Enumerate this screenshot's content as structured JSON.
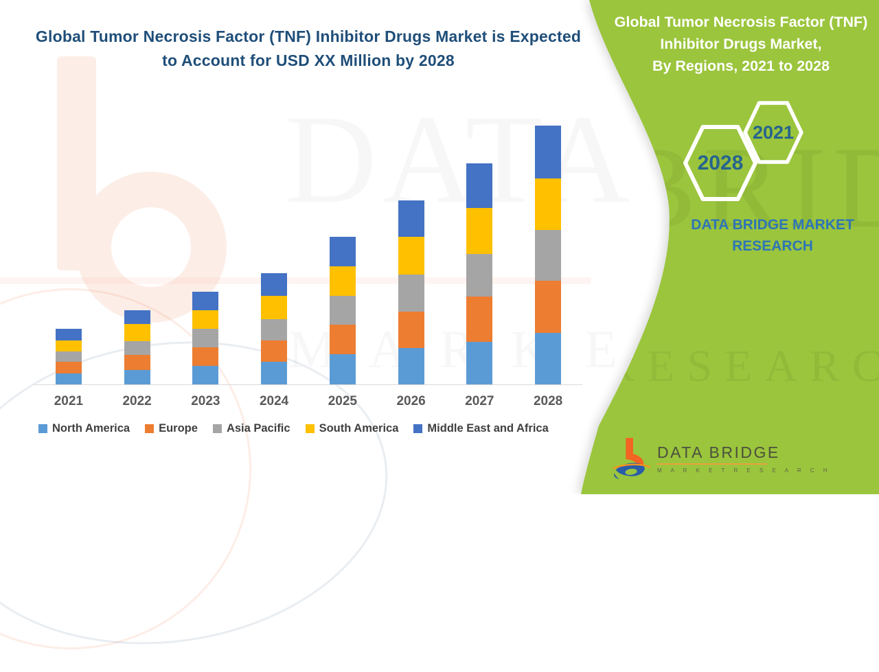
{
  "main_title": {
    "line1": "Global Tumor Necrosis Factor (TNF) Inhibitor Drugs Market is Expected",
    "line2": "to Account for USD XX Million by 2028",
    "color": "#1F4E79"
  },
  "side_panel": {
    "background": "#9BC53E",
    "title_lines": [
      "Global Tumor Necrosis Factor (TNF)",
      "Inhibitor Drugs Market,",
      "By Regions, 2021 to 2028"
    ],
    "hexagons": [
      {
        "label": "2021"
      },
      {
        "label": "2028"
      }
    ],
    "brand_caption": {
      "line1": "DATA BRIDGE MARKET",
      "line2": "RESEARCH",
      "color": "#2E75B6"
    },
    "logo": {
      "title": "DATA BRIDGE",
      "subtitle": "M A R K E T   R E S E A R C H"
    }
  },
  "watermarks": {
    "big_text": "DATA B",
    "row_text": "M A R K E T  R E S E",
    "panel_text_1": "BRIDGE",
    "panel_text_2": "RESEARCH"
  },
  "chart_data": {
    "type": "bar",
    "stacked": true,
    "title": "Global Tumor Necrosis Factor (TNF) Inhibitor Drugs Market is Expected to Account for USD XX Million by 2028",
    "categories": [
      "2021",
      "2022",
      "2023",
      "2024",
      "2025",
      "2026",
      "2027",
      "2028"
    ],
    "series": [
      {
        "name": "North America",
        "color": "#5B9BD5",
        "values": [
          16,
          21,
          27,
          33,
          44,
          53,
          62,
          75
        ]
      },
      {
        "name": "Europe",
        "color": "#ED7D31",
        "values": [
          17,
          22,
          27,
          31,
          43,
          53,
          66,
          76
        ]
      },
      {
        "name": "Asia Pacific",
        "color": "#A5A5A5",
        "values": [
          15,
          20,
          27,
          31,
          42,
          54,
          62,
          74
        ]
      },
      {
        "name": "South America",
        "color": "#FFC000",
        "values": [
          16,
          25,
          27,
          34,
          43,
          55,
          67,
          75
        ]
      },
      {
        "name": "Middle East and Africa",
        "color": "#4472C4",
        "values": [
          17,
          20,
          27,
          33,
          43,
          53,
          65,
          77
        ]
      }
    ],
    "totals_relative": [
      81,
      108,
      135,
      162,
      215,
      268,
      322,
      377
    ],
    "value_axis": {
      "visible": false,
      "units": "relative height (values shown as USD XX Million placeholder)"
    },
    "xlabel": "",
    "ylabel": "",
    "grid": false,
    "legend_position": "bottom"
  }
}
